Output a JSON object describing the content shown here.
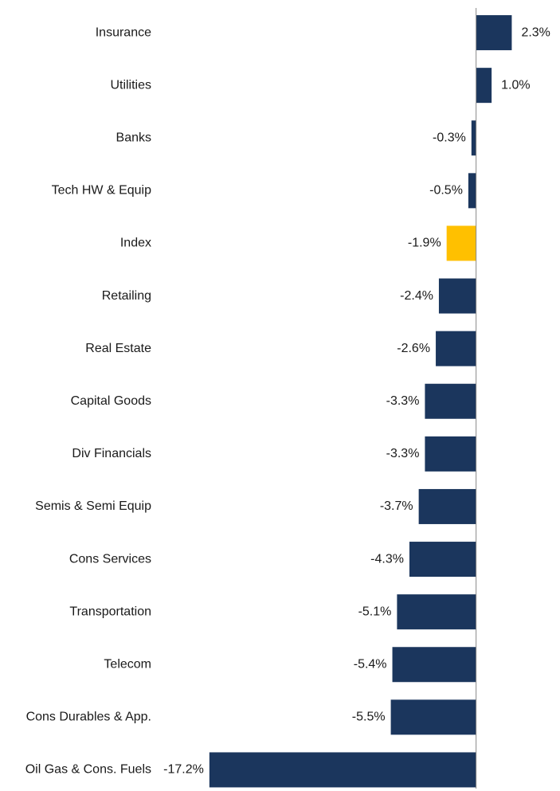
{
  "chart_data": {
    "type": "hbar",
    "categories": [
      "Insurance",
      "Utilities",
      "Banks",
      "Tech HW & Equip",
      "Index",
      "Retailing",
      "Real Estate",
      "Capital Goods",
      "Div Financials",
      "Semis & Semi Equip",
      "Cons Services",
      "Transportation",
      "Telecom",
      "Cons Durables & App.",
      "Oil Gas & Cons. Fuels"
    ],
    "values": [
      2.3,
      1.0,
      -0.3,
      -0.5,
      -1.9,
      -2.4,
      -2.6,
      -3.3,
      -3.3,
      -3.7,
      -4.3,
      -5.1,
      -5.4,
      -5.5,
      -17.2
    ],
    "value_labels": [
      "2.3%",
      "1.0%",
      "-0.3%",
      "-0.5%",
      "-1.9%",
      "-2.4%",
      "-2.6%",
      "-3.3%",
      "-3.3%",
      "-3.7%",
      "-4.3%",
      "-5.1%",
      "-5.4%",
      "-5.5%",
      "-17.2%"
    ],
    "colors": [
      "#1b365d",
      "#1b365d",
      "#1b365d",
      "#1b365d",
      "#ffc000",
      "#1b365d",
      "#1b365d",
      "#1b365d",
      "#1b365d",
      "#1b365d",
      "#1b365d",
      "#1b365d",
      "#1b365d",
      "#1b365d",
      "#1b365d"
    ],
    "xlim": [
      -17.5,
      5
    ]
  }
}
